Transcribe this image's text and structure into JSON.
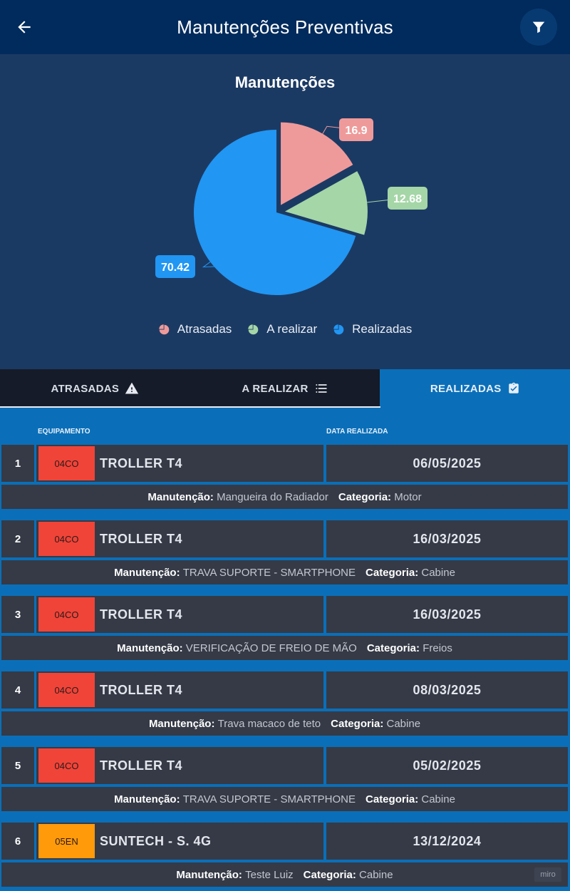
{
  "header": {
    "title": "Manutenções Preventivas",
    "back_icon": "arrow-left-icon",
    "filter_icon": "filter-icon"
  },
  "chart_data": {
    "type": "pie",
    "title": "Manutenções",
    "categories": [
      "Atrasadas",
      "A realizar",
      "Realizadas"
    ],
    "values": [
      16.9,
      12.68,
      70.42
    ],
    "value_labels": [
      "16.9",
      "12.68",
      "70.42"
    ],
    "colors": [
      "#ef9a9a",
      "#a5d6a7",
      "#2196f3"
    ],
    "exploded": [
      "Atrasadas",
      "A realizar"
    ],
    "legend_position": "bottom"
  },
  "tabs": [
    {
      "label": "ATRASADAS",
      "icon": "warning-icon",
      "active": false
    },
    {
      "label": "A REALIZAR",
      "icon": "list-icon",
      "active": false
    },
    {
      "label": "REALIZADAS",
      "icon": "clipboard-check-icon",
      "active": true
    }
  ],
  "columns": {
    "equipment": "EQUIPAMENTO",
    "date": "DATA REALIZADA"
  },
  "labels": {
    "maintenance": "Manutenção:",
    "category": "Categoria:"
  },
  "records": [
    {
      "index": "1",
      "code": "04CO",
      "code_color": "red",
      "equipment": "TROLLER T4",
      "date": "06/05/2025",
      "maintenance": "Mangueira do Radiador",
      "category": "Motor"
    },
    {
      "index": "2",
      "code": "04CO",
      "code_color": "red",
      "equipment": "TROLLER T4",
      "date": "16/03/2025",
      "maintenance": "TRAVA SUPORTE - SMARTPHONE",
      "category": "Cabine"
    },
    {
      "index": "3",
      "code": "04CO",
      "code_color": "red",
      "equipment": "TROLLER T4",
      "date": "16/03/2025",
      "maintenance": "VERIFICAÇÃO DE FREIO DE MÃO",
      "category": "Freios"
    },
    {
      "index": "4",
      "code": "04CO",
      "code_color": "red",
      "equipment": "TROLLER T4",
      "date": "08/03/2025",
      "maintenance": "Trava macaco de teto",
      "category": "Cabine"
    },
    {
      "index": "5",
      "code": "04CO",
      "code_color": "red",
      "equipment": "TROLLER T4",
      "date": "05/02/2025",
      "maintenance": "TRAVA SUPORTE - SMARTPHONE",
      "category": "Cabine"
    },
    {
      "index": "6",
      "code": "05EN",
      "code_color": "orange",
      "equipment": "SUNTECH - S. 4G",
      "date": "13/12/2024",
      "maintenance": "Teste Luiz",
      "category": "Cabine"
    }
  ],
  "watermark": "miro"
}
